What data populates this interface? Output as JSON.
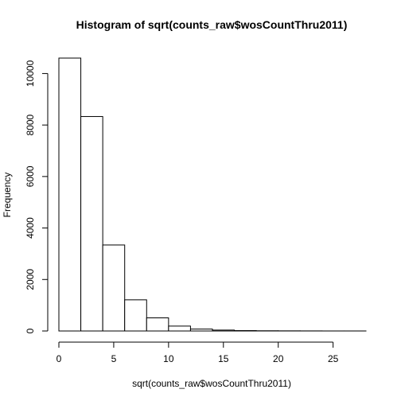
{
  "chart_data": {
    "type": "bar",
    "title": "Histogram of sqrt(counts_raw$wosCountThru2011)",
    "xlabel": "sqrt(counts_raw$wosCountThru2011)",
    "ylabel": "Frequency",
    "bins": [
      {
        "x0": 0,
        "x1": 2,
        "count": 10600
      },
      {
        "x0": 2,
        "x1": 4,
        "count": 8330
      },
      {
        "x0": 4,
        "x1": 6,
        "count": 3340
      },
      {
        "x0": 6,
        "x1": 8,
        "count": 1210
      },
      {
        "x0": 8,
        "x1": 10,
        "count": 510
      },
      {
        "x0": 10,
        "x1": 12,
        "count": 190
      },
      {
        "x0": 12,
        "x1": 14,
        "count": 75
      },
      {
        "x0": 14,
        "x1": 16,
        "count": 35
      },
      {
        "x0": 16,
        "x1": 18,
        "count": 15
      },
      {
        "x0": 18,
        "x1": 20,
        "count": 8
      },
      {
        "x0": 20,
        "x1": 22,
        "count": 5
      },
      {
        "x0": 22,
        "x1": 24,
        "count": 3
      },
      {
        "x0": 24,
        "x1": 26,
        "count": 1
      },
      {
        "x0": 26,
        "x1": 28,
        "count": 1
      }
    ],
    "xlim": [
      0,
      28
    ],
    "ylim": [
      0,
      10600
    ],
    "xticks": [
      0,
      5,
      10,
      15,
      20,
      25
    ],
    "yticks": [
      0,
      2000,
      4000,
      6000,
      8000,
      10000
    ],
    "grid": false,
    "colors": {
      "bar_fill": "#ffffff",
      "bar_stroke": "#000000"
    }
  }
}
